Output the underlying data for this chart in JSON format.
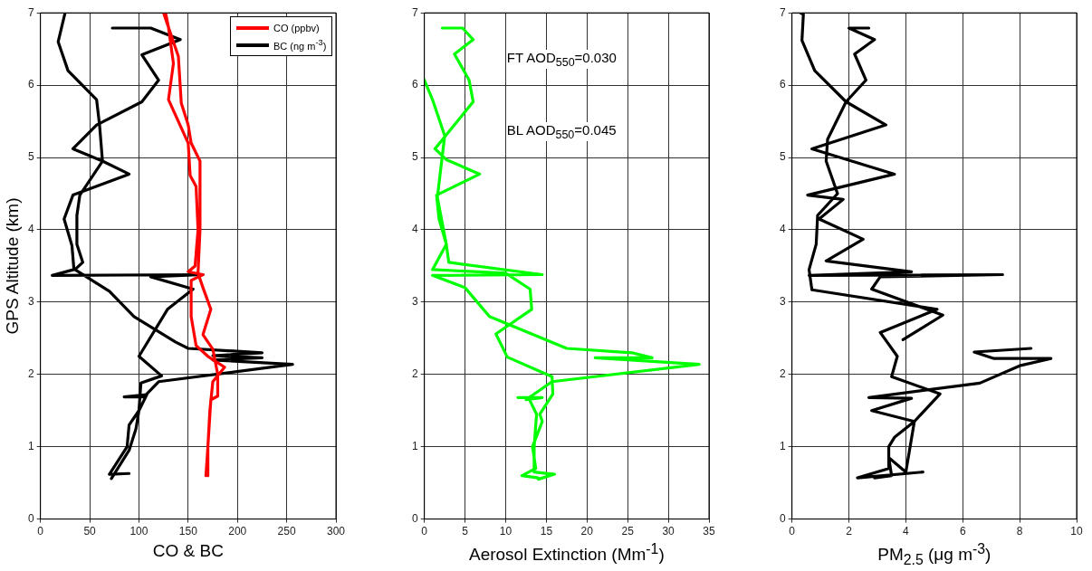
{
  "chart_data": [
    {
      "type": "line",
      "xlabel": "CO & BC",
      "ylabel": "GPS Altitude (km)",
      "xlim": [
        0,
        300
      ],
      "xticks": [
        0,
        50,
        100,
        150,
        200,
        250,
        300
      ],
      "ylim": [
        0,
        7
      ],
      "yticks": [
        0,
        1,
        2,
        3,
        4,
        5,
        6,
        7
      ],
      "grid": true,
      "legend": "top right",
      "marker": "none",
      "line_style": "solid",
      "series": [
        {
          "name": "CO (ppbv)",
          "color": "#ff0000",
          "x": [
            127,
            130,
            135,
            130,
            150,
            152,
            158,
            160,
            157,
            150,
            165,
            153,
            153,
            158,
            170,
            187,
            175,
            172,
            170,
            170,
            null,
            125,
            140,
            143,
            150,
            153,
            162,
            162,
            160,
            165,
            173,
            165,
            175,
            180,
            180,
            173,
            170,
            168
          ],
          "values": [
            7,
            6.8,
            6.3,
            5.8,
            5.2,
            4.75,
            4.6,
            4,
            3.5,
            3.42,
            3.38,
            3.3,
            2.8,
            2.4,
            2.25,
            2.1,
            1.9,
            1.5,
            1,
            0.6,
            null,
            7,
            6.4,
            5.75,
            5.45,
            5.2,
            4.95,
            4,
            3.4,
            3.2,
            2.9,
            2.55,
            2.35,
            2,
            1.7,
            1.65,
            1,
            0.6
          ]
        },
        {
          "name": "BC (ng m$^{-3}$)",
          "color": "#000000",
          "x": [
            73,
            112,
            142,
            103,
            120,
            103,
            57,
            33,
            63,
            90,
            33,
            24,
            32,
            34,
            12,
            165,
            112,
            155,
            129,
            100,
            123,
            102,
            100,
            90,
            88,
            70,
            90,
            null,
            72,
            90,
            97,
            100,
            108,
            85,
            105,
            120,
            256,
            175,
            225,
            175,
            225,
            150,
            137,
            95,
            70,
            35,
            43,
            37,
            37,
            40,
            63,
            60,
            57,
            28,
            18,
            25
          ],
          "values": [
            6.79,
            6.79,
            6.63,
            6.42,
            6.07,
            5.77,
            5.45,
            5.12,
            4.95,
            4.77,
            4.48,
            4.15,
            3.78,
            3.45,
            3.37,
            3.38,
            3.35,
            3.18,
            2.9,
            2.25,
            1.98,
            1.88,
            1.5,
            1.3,
            1,
            0.62,
            0.63,
            null,
            0.56,
            0.95,
            1.25,
            1.5,
            1.72,
            1.69,
            1.69,
            1.9,
            2.14,
            2.2,
            2.23,
            2.26,
            2.3,
            2.36,
            2.45,
            2.8,
            3.15,
            3.45,
            3.55,
            3.8,
            4.2,
            4.48,
            4.95,
            5.45,
            5.8,
            6.2,
            6.6,
            7
          ]
        }
      ]
    },
    {
      "type": "line",
      "xlabel": "Aerosol Extinction (Mm$^{-1}$)",
      "xlim": [
        0,
        35
      ],
      "xticks": [
        0,
        5,
        10,
        15,
        20,
        25,
        30,
        35
      ],
      "ylim": [
        0,
        7
      ],
      "yticks": [
        0,
        1,
        2,
        3,
        4,
        5,
        6,
        7
      ],
      "grid": true,
      "marker": "none",
      "line_style": "solid",
      "annotations": [
        "FT AOD$_{550}$=0.030",
        "BL AOD$_{550}$=0.045"
      ],
      "series": [
        {
          "color": "#00ff00",
          "x": [
            2.2,
            4.7,
            6,
            3.7,
            5.5,
            6,
            1.3,
            2.7,
            6.8,
            1.5,
            1.8,
            2.7,
            1,
            10,
            13,
            13.2,
            8.8,
            10.2,
            15.7,
            15.8,
            14.2,
            14.5,
            13.3,
            13.7,
            12,
            14,
            null,
            14,
            16,
            13.5,
            13.5,
            13.8,
            12.8,
            11.5,
            14.5,
            12.5,
            15.7,
            33.8,
            21,
            28,
            25.5,
            17.5,
            8,
            5,
            1,
            14.5,
            3,
            2.7,
            1.6,
            2.5,
            1,
            0
          ],
          "values": [
            6.79,
            6.79,
            6.63,
            6.43,
            6.07,
            5.77,
            5.12,
            4.97,
            4.77,
            4.48,
            4.15,
            3.8,
            3.45,
            3.4,
            3.18,
            2.9,
            2.56,
            2.24,
            1.97,
            1.73,
            1.45,
            1.35,
            1,
            0.7,
            0.6,
            0.57,
            null,
            0.55,
            0.62,
            0.65,
            1,
            1.45,
            1.68,
            1.68,
            1.68,
            1.65,
            1.9,
            2.14,
            2.23,
            2.23,
            2.3,
            2.36,
            2.8,
            3.2,
            3.37,
            3.38,
            3.55,
            3.8,
            4.45,
            5.3,
            5.8,
            6.07
          ]
        }
      ]
    },
    {
      "type": "line",
      "xlabel": "PM$_{2.5}$ (μg m$^{-3}$)",
      "xlim": [
        0,
        10
      ],
      "xticks": [
        0,
        2,
        4,
        6,
        8,
        10
      ],
      "ylim": [
        0,
        7
      ],
      "yticks": [
        0,
        1,
        2,
        3,
        4,
        5,
        6,
        7
      ],
      "grid": true,
      "marker": "none",
      "line_style": "solid",
      "series": [
        {
          "color": "#000000",
          "x": [
            0.3,
            0.4,
            0.35,
            0.8,
            1.9,
            1.25,
            1.2,
            1.6,
            0.9,
            0.85,
            0.6,
            0.7,
            5.1,
            3.1,
            3.7,
            3.5,
            5.2,
            4.3,
            3.6,
            3.4,
            3.4,
            2.3,
            4.6,
            null,
            2.7,
            2,
            2.9,
            2.2,
            2.6,
            1.9,
            3.3,
            0.7,
            3.6,
            0.55,
            1.8,
            0.95,
            2.5,
            1.2,
            4.2,
            0.6,
            7.4,
            3.1,
            2.8,
            5.3,
            3.9,
            null,
            8.4,
            6.4,
            7.1,
            9.1,
            8,
            6.6,
            2.7,
            4.2,
            2.8,
            4.3,
            4,
            3.4,
            3.5,
            2.9
          ],
          "values": [
            7,
            6.98,
            6.62,
            6.2,
            5.77,
            5.25,
            4.95,
            4.5,
            4.2,
            3.8,
            3.45,
            3.17,
            2.9,
            2.58,
            2.25,
            1.97,
            1.73,
            1.35,
            1.13,
            1,
            0.7,
            0.57,
            0.65,
            null,
            6.79,
            6.79,
            6.63,
            6.43,
            6.07,
            5.77,
            5.45,
            5.12,
            4.77,
            4.48,
            4.42,
            4.15,
            3.87,
            3.57,
            3.42,
            3.37,
            3.38,
            3.35,
            3.18,
            2.82,
            2.48,
            null,
            2.36,
            2.31,
            2.22,
            2.22,
            2.12,
            1.88,
            1.68,
            1.67,
            1.5,
            1.35,
            0.65,
            0.85,
            0.6,
            0.57
          ]
        }
      ]
    }
  ]
}
